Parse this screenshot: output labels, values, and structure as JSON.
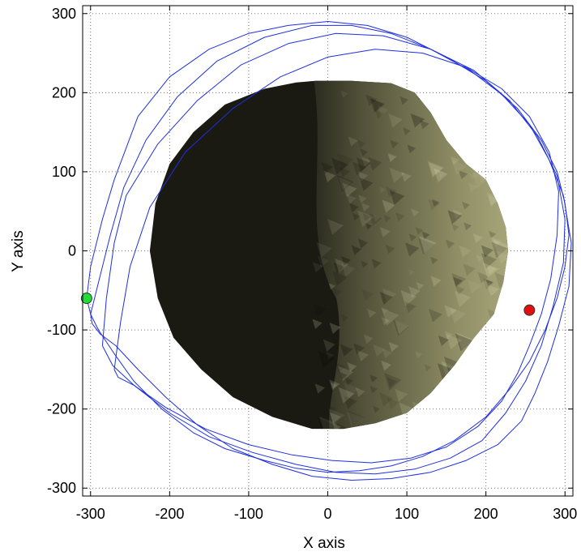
{
  "chart_data": {
    "type": "line",
    "title": "",
    "xlabel": "X axis",
    "ylabel": "Y axis",
    "xlim": [
      -310,
      310
    ],
    "ylim": [
      -310,
      310
    ],
    "xticks": [
      -300,
      -200,
      -100,
      0,
      100,
      200,
      300
    ],
    "yticks": [
      -300,
      -200,
      -100,
      0,
      100,
      200,
      300
    ],
    "xtick_labels": [
      "-300",
      "-200",
      "-100",
      "0",
      "100",
      "200",
      "300"
    ],
    "ytick_labels": [
      "-300",
      "-200",
      "-100",
      "0",
      "100",
      "200",
      "300"
    ],
    "grid": true,
    "colors": {
      "trajectory": "#1f2fe0",
      "start_marker": "#22dd33",
      "end_marker": "#e01010",
      "body_dark": "#1a1a12",
      "body_lit": "#a8a878"
    },
    "body": {
      "name": "",
      "outline": [
        [
          -15,
          215
        ],
        [
          30,
          215
        ],
        [
          80,
          212
        ],
        [
          110,
          200
        ],
        [
          130,
          175
        ],
        [
          150,
          140
        ],
        [
          175,
          110
        ],
        [
          200,
          90
        ],
        [
          215,
          60
        ],
        [
          225,
          30
        ],
        [
          228,
          0
        ],
        [
          222,
          -40
        ],
        [
          210,
          -80
        ],
        [
          185,
          -110
        ],
        [
          160,
          -145
        ],
        [
          130,
          -180
        ],
        [
          100,
          -205
        ],
        [
          60,
          -218
        ],
        [
          20,
          -225
        ],
        [
          -20,
          -225
        ],
        [
          -70,
          -210
        ],
        [
          -120,
          -185
        ],
        [
          -160,
          -150
        ],
        [
          -195,
          -110
        ],
        [
          -215,
          -60
        ],
        [
          -225,
          0
        ],
        [
          -218,
          60
        ],
        [
          -200,
          110
        ],
        [
          -170,
          150
        ],
        [
          -130,
          185
        ],
        [
          -80,
          205
        ],
        [
          -40,
          213
        ]
      ],
      "terminator_x": -20
    },
    "series": [
      {
        "x": [
          -305,
          -300,
          -285,
          -270,
          -255,
          -240,
          -200,
          -150,
          -100,
          -50,
          0,
          50,
          100,
          150,
          200,
          240,
          270,
          290,
          300,
          305,
          300,
          290,
          275,
          255,
          230,
          200,
          160,
          120,
          80,
          40,
          0,
          -40,
          -80,
          -130,
          -170,
          -210,
          -245,
          -270,
          -290,
          -300,
          -305
        ],
        "y": [
          -60,
          -20,
          40,
          90,
          130,
          170,
          220,
          255,
          275,
          285,
          290,
          285,
          270,
          245,
          215,
          180,
          140,
          100,
          60,
          20,
          -20,
          -60,
          -100,
          -140,
          -175,
          -210,
          -240,
          -260,
          -272,
          -278,
          -280,
          -275,
          -265,
          -250,
          -230,
          -200,
          -165,
          -130,
          -100,
          -80,
          -60
        ]
      },
      {
        "x": [
          -300,
          -290,
          -275,
          -258,
          -230,
          -190,
          -140,
          -80,
          -20,
          30,
          80,
          130,
          180,
          220,
          255,
          280,
          298,
          308,
          305,
          292,
          278,
          262,
          245,
          215,
          175,
          130,
          80,
          30,
          -20,
          -70,
          -120,
          -165,
          -205,
          -240,
          -268,
          -288,
          -298,
          -300
        ],
        "y": [
          -80,
          -40,
          20,
          80,
          140,
          195,
          240,
          270,
          285,
          285,
          275,
          255,
          228,
          198,
          160,
          115,
          70,
          10,
          -45,
          -95,
          -140,
          -180,
          -215,
          -245,
          -265,
          -280,
          -288,
          -290,
          -285,
          -270,
          -250,
          -220,
          -185,
          -150,
          -120,
          -105,
          -92,
          -80
        ]
      },
      {
        "x": [
          -285,
          -280,
          -270,
          -255,
          -215,
          -165,
          -110,
          -50,
          10,
          70,
          130,
          185,
          230,
          265,
          290,
          300,
          298,
          285,
          270,
          250,
          225,
          195,
          155,
          110,
          60,
          10,
          -40,
          -95,
          -150,
          -200,
          -245,
          -272,
          -285
        ],
        "y": [
          -120,
          -60,
          10,
          70,
          135,
          190,
          235,
          262,
          275,
          272,
          255,
          228,
          190,
          145,
          95,
          40,
          -15,
          -70,
          -120,
          -165,
          -205,
          -240,
          -262,
          -276,
          -282,
          -280,
          -270,
          -255,
          -235,
          -205,
          -170,
          -145,
          -120
        ]
      },
      {
        "x": [
          -270,
          -262,
          -250,
          -225,
          -180,
          -120,
          -60,
          0,
          60,
          120,
          175,
          220,
          255,
          280,
          292,
          290,
          282,
          270,
          255,
          240,
          220,
          190,
          150,
          105,
          55,
          5,
          -45,
          -100,
          -155,
          -205,
          -245,
          -265,
          -270
        ],
        "y": [
          -150,
          -90,
          -20,
          55,
          125,
          180,
          220,
          245,
          255,
          250,
          232,
          205,
          170,
          125,
          75,
          20,
          -35,
          -80,
          -120,
          -155,
          -190,
          -222,
          -248,
          -262,
          -268,
          -265,
          -258,
          -245,
          -225,
          -198,
          -170,
          -160,
          -150
        ]
      }
    ],
    "points": [
      {
        "name": "start",
        "x": -305,
        "y": -60
      },
      {
        "name": "end",
        "x": 255,
        "y": -75
      }
    ]
  }
}
